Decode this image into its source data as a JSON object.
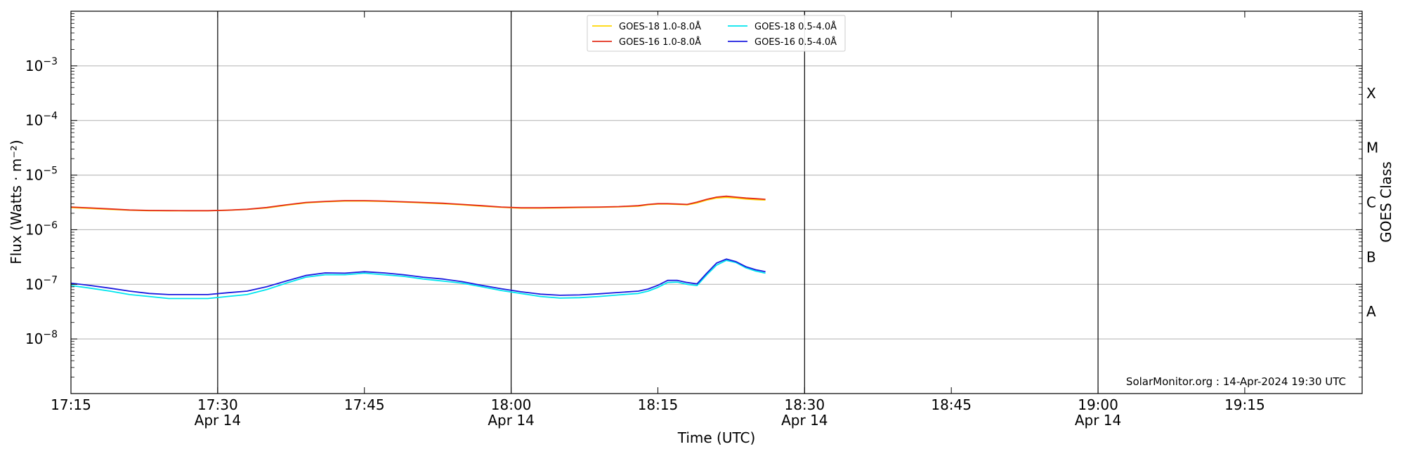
{
  "chart_data": {
    "type": "line",
    "xlabel": "Time (UTC)",
    "ylabel": "Flux (Watts · m⁻²)",
    "y2label": "GOES Class",
    "y_scale": "log",
    "ylim": [
      1e-09,
      0.01
    ],
    "xlim": [
      "17:15",
      "19:27"
    ],
    "grid": true,
    "legend_position": "top-center",
    "credit": "SolarMonitor.org : 14-Apr-2024 19:30 UTC",
    "x_ticks": [
      {
        "time": "17:15",
        "label": "17:15",
        "date": ""
      },
      {
        "time": "17:30",
        "label": "17:30",
        "date": "Apr 14"
      },
      {
        "time": "17:45",
        "label": "17:45",
        "date": ""
      },
      {
        "time": "18:00",
        "label": "18:00",
        "date": "Apr 14"
      },
      {
        "time": "18:15",
        "label": "18:15",
        "date": ""
      },
      {
        "time": "18:30",
        "label": "18:30",
        "date": "Apr 14"
      },
      {
        "time": "18:45",
        "label": "18:45",
        "date": ""
      },
      {
        "time": "19:00",
        "label": "19:00",
        "date": "Apr 14"
      },
      {
        "time": "19:15",
        "label": "19:15",
        "date": ""
      }
    ],
    "vertical_lines": [
      "17:30",
      "18:00",
      "18:30",
      "19:00"
    ],
    "y_ticks": [
      {
        "value": 0.001,
        "base": "10",
        "exp": "−3"
      },
      {
        "value": 0.0001,
        "base": "10",
        "exp": "−4"
      },
      {
        "value": 1e-05,
        "base": "10",
        "exp": "−5"
      },
      {
        "value": 1e-06,
        "base": "10",
        "exp": "−6"
      },
      {
        "value": 1e-07,
        "base": "10",
        "exp": "−7"
      },
      {
        "value": 1e-08,
        "base": "10",
        "exp": "−8"
      }
    ],
    "classes": [
      {
        "label": "X",
        "value": 0.000316
      },
      {
        "label": "M",
        "value": 3.16e-05
      },
      {
        "label": "C",
        "value": 3.16e-06
      },
      {
        "label": "B",
        "value": 3.16e-07
      },
      {
        "label": "A",
        "value": 3.16e-08
      }
    ],
    "x": [
      "17:15",
      "17:17",
      "17:19",
      "17:21",
      "17:23",
      "17:25",
      "17:27",
      "17:29",
      "17:31",
      "17:33",
      "17:35",
      "17:37",
      "17:39",
      "17:41",
      "17:43",
      "17:45",
      "17:47",
      "17:49",
      "17:51",
      "17:53",
      "17:55",
      "17:57",
      "17:59",
      "18:01",
      "18:03",
      "18:05",
      "18:07",
      "18:09",
      "18:11",
      "18:13",
      "18:14",
      "18:15",
      "18:16",
      "18:17",
      "18:18",
      "18:19",
      "18:20",
      "18:21",
      "18:22",
      "18:23",
      "18:24",
      "18:25",
      "18:26"
    ],
    "series": [
      {
        "name": "GOES-18 1.0-8.0Å",
        "color": "#ffd700",
        "values": [
          2.55e-06,
          2.45e-06,
          2.35e-06,
          2.28e-06,
          2.23e-06,
          2.22e-06,
          2.22e-06,
          2.22e-06,
          2.27e-06,
          2.35e-06,
          2.5e-06,
          2.8e-06,
          3.1e-06,
          3.25e-06,
          3.35e-06,
          3.35e-06,
          3.3e-06,
          3.2e-06,
          3.1e-06,
          3e-06,
          2.85e-06,
          2.7e-06,
          2.57e-06,
          2.48e-06,
          2.48e-06,
          2.5e-06,
          2.55e-06,
          2.57e-06,
          2.62e-06,
          2.7e-06,
          2.85e-06,
          2.95e-06,
          2.95e-06,
          2.9e-06,
          2.85e-06,
          3.1e-06,
          3.5e-06,
          3.8e-06,
          3.9e-06,
          3.8e-06,
          3.65e-06,
          3.55e-06,
          3.5e-06
        ]
      },
      {
        "name": "GOES-16 1.0-8.0Å",
        "color": "#e32b1a",
        "values": [
          2.6e-06,
          2.5e-06,
          2.4e-06,
          2.3e-06,
          2.25e-06,
          2.24e-06,
          2.23e-06,
          2.23e-06,
          2.28e-06,
          2.37e-06,
          2.55e-06,
          2.85e-06,
          3.15e-06,
          3.3e-06,
          3.4e-06,
          3.4e-06,
          3.35e-06,
          3.25e-06,
          3.15e-06,
          3.05e-06,
          2.9e-06,
          2.75e-06,
          2.6e-06,
          2.52e-06,
          2.52e-06,
          2.55e-06,
          2.58e-06,
          2.6e-06,
          2.65e-06,
          2.75e-06,
          2.9e-06,
          3e-06,
          3e-06,
          2.95e-06,
          2.9e-06,
          3.2e-06,
          3.6e-06,
          3.95e-06,
          4.1e-06,
          3.95e-06,
          3.8e-06,
          3.7e-06,
          3.6e-06
        ]
      },
      {
        "name": "GOES-18 0.5-4.0Å",
        "color": "#00e5ee",
        "values": [
          9.5e-08,
          8.5e-08,
          7.5e-08,
          6.5e-08,
          6e-08,
          5.5e-08,
          5.5e-08,
          5.5e-08,
          6e-08,
          6.5e-08,
          8e-08,
          1.05e-07,
          1.35e-07,
          1.5e-07,
          1.5e-07,
          1.6e-07,
          1.5e-07,
          1.4e-07,
          1.25e-07,
          1.15e-07,
          1.05e-07,
          9e-08,
          7.7e-08,
          6.8e-08,
          6e-08,
          5.6e-08,
          5.7e-08,
          6e-08,
          6.4e-08,
          6.8e-08,
          7.5e-08,
          8.8e-08,
          1.08e-07,
          1.1e-07,
          1e-07,
          9.5e-08,
          1.5e-07,
          2.25e-07,
          2.75e-07,
          2.5e-07,
          2e-07,
          1.75e-07,
          1.6e-07
        ]
      },
      {
        "name": "GOES-16 0.5-4.0Å",
        "color": "#1a1adf",
        "values": [
          1.05e-07,
          9.5e-08,
          8.5e-08,
          7.5e-08,
          6.8e-08,
          6.5e-08,
          6.5e-08,
          6.5e-08,
          7e-08,
          7.5e-08,
          9e-08,
          1.15e-07,
          1.45e-07,
          1.62e-07,
          1.6e-07,
          1.7e-07,
          1.62e-07,
          1.5e-07,
          1.35e-07,
          1.25e-07,
          1.12e-07,
          9.6e-08,
          8.3e-08,
          7.3e-08,
          6.6e-08,
          6.3e-08,
          6.4e-08,
          6.7e-08,
          7.1e-08,
          7.5e-08,
          8.2e-08,
          9.6e-08,
          1.18e-07,
          1.18e-07,
          1.08e-07,
          1.02e-07,
          1.6e-07,
          2.45e-07,
          2.9e-07,
          2.6e-07,
          2.1e-07,
          1.85e-07,
          1.7e-07
        ]
      }
    ]
  }
}
